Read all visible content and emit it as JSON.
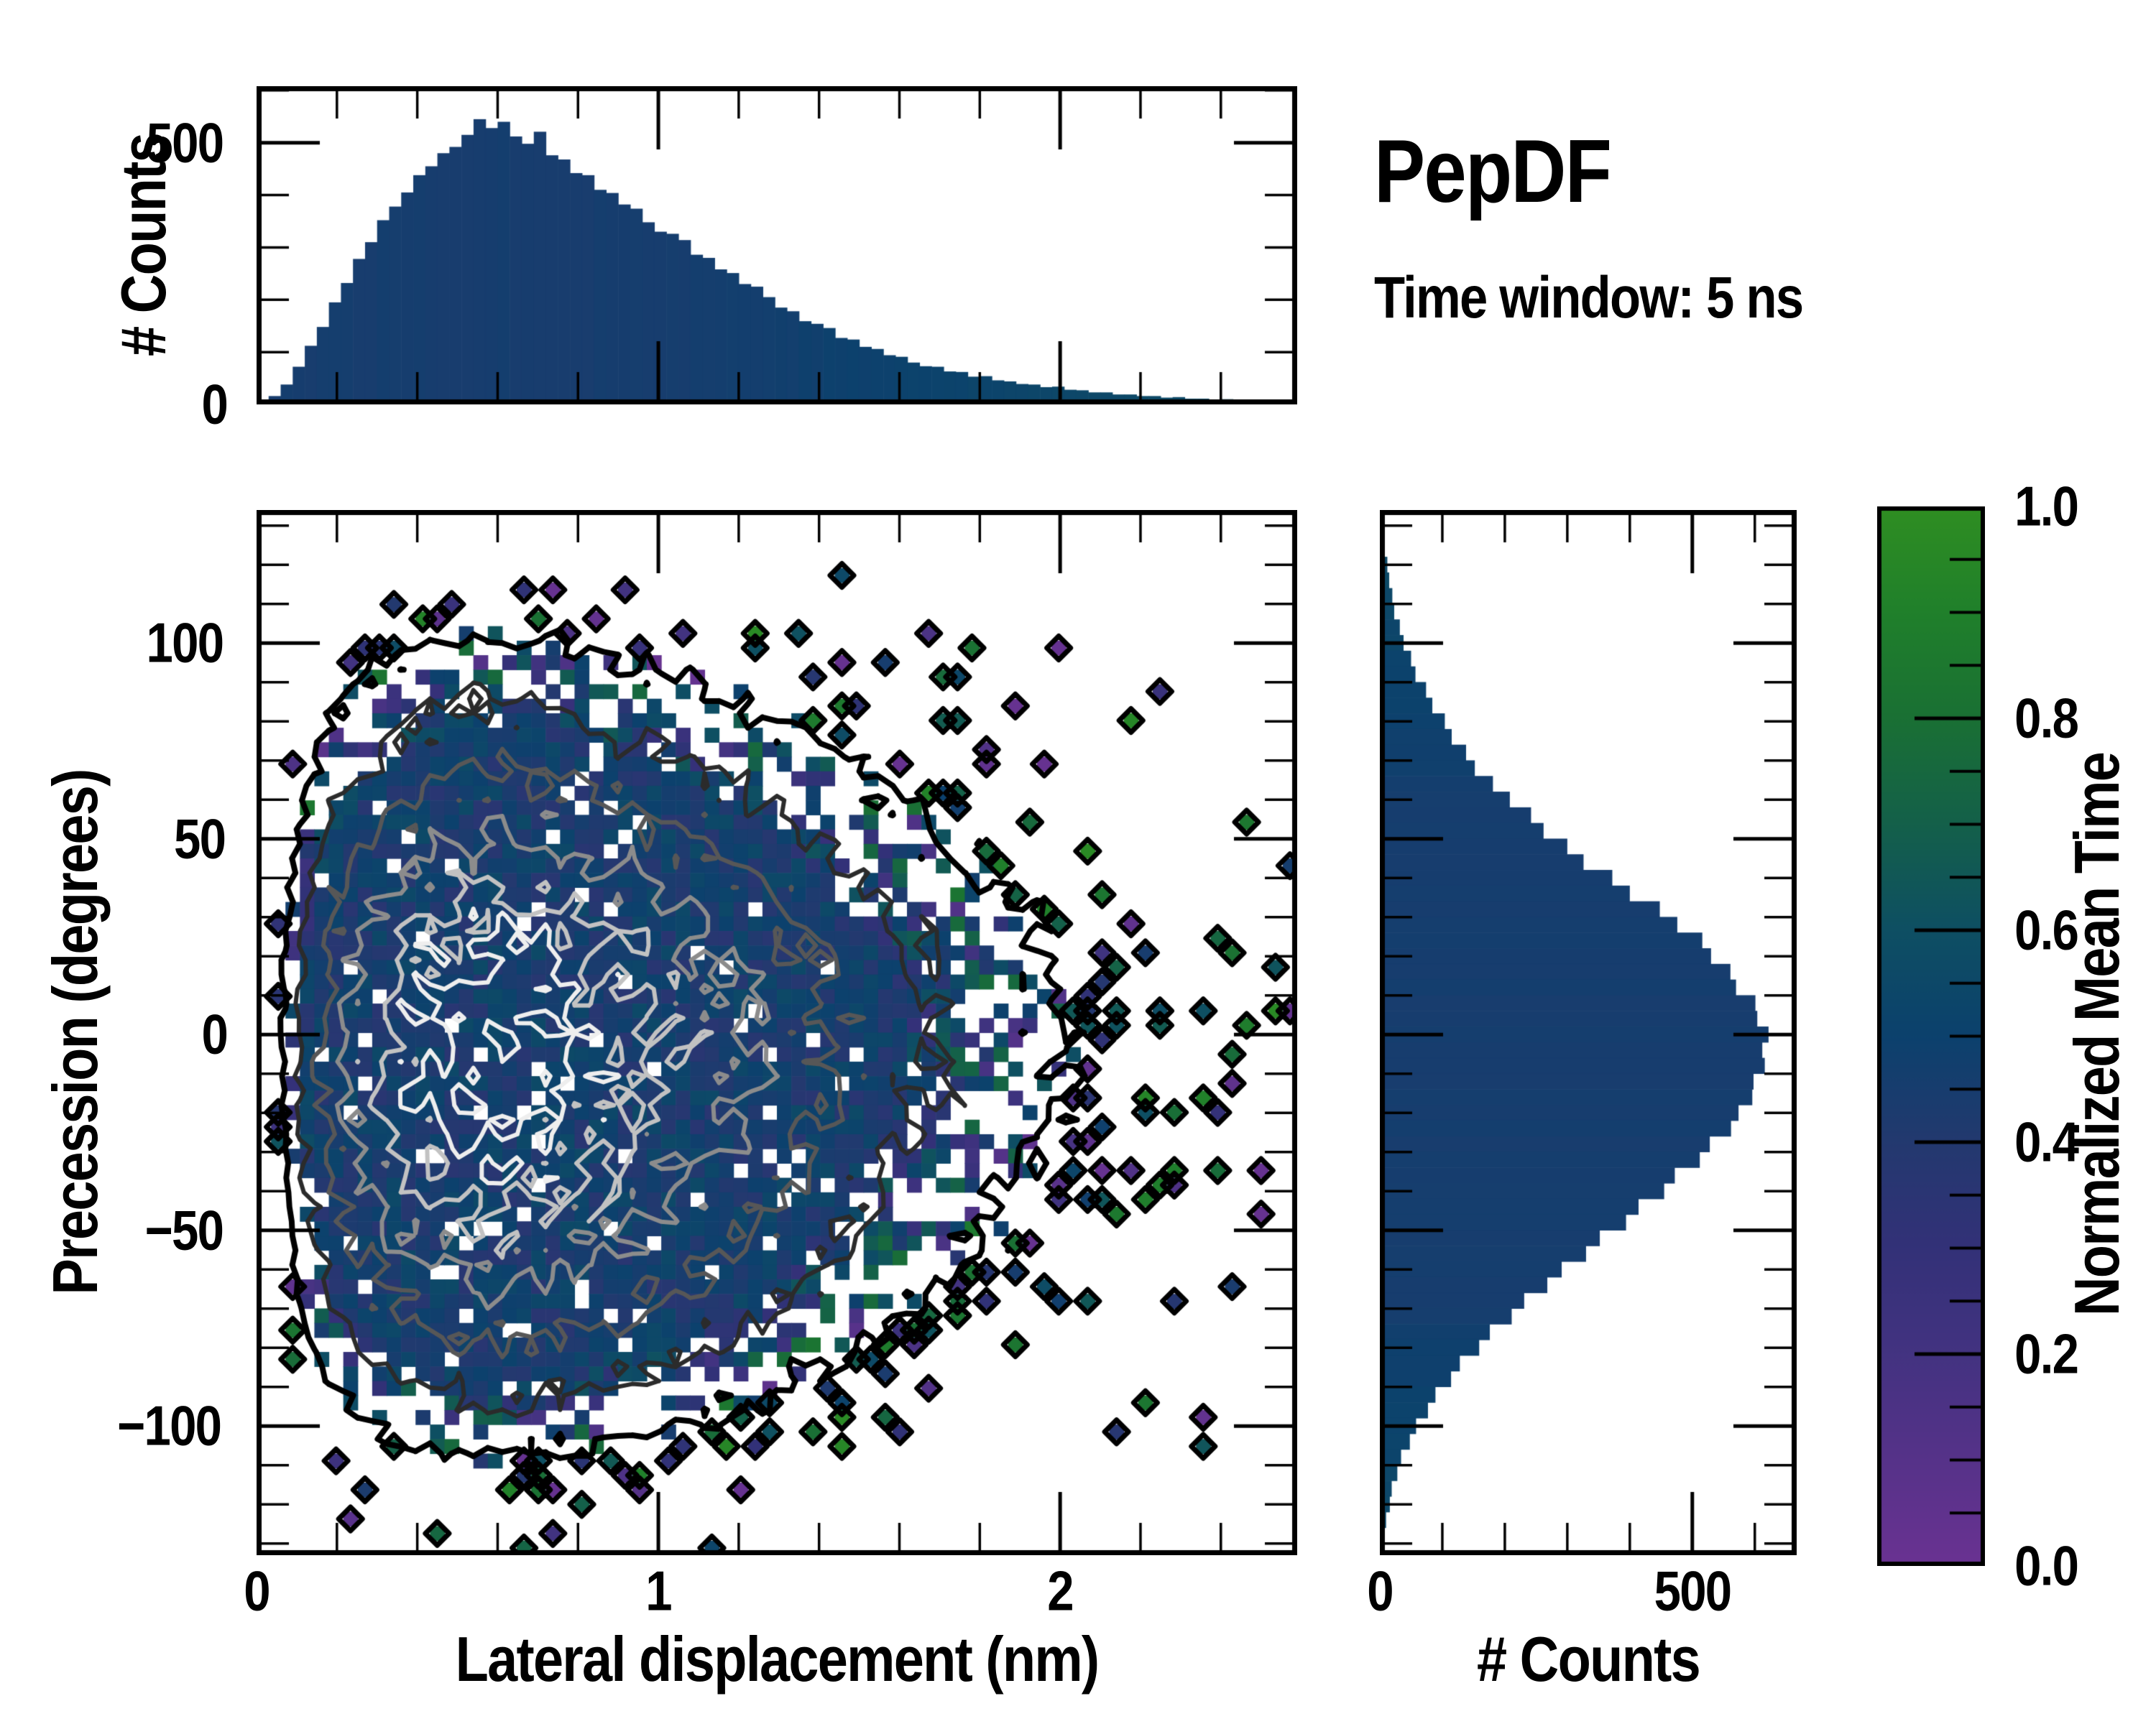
{
  "title": {
    "main": "PepDF",
    "subtitle": "Time window: 5 ns"
  },
  "colors": {
    "background": "#ffffff",
    "axis": "#000000",
    "histogram_bar": "#15406e"
  },
  "chart_data": {
    "type": "hist2d_with_marginals",
    "main": {
      "type": "heatmap",
      "xlabel": "Lateral displacement (nm)",
      "ylabel": "Precession (degrees)",
      "xlim": [
        0,
        2.59
      ],
      "ylim": [
        -133,
        134
      ],
      "xticks": [
        0,
        1,
        2
      ],
      "xtick_labels": [
        "0",
        "1",
        "2"
      ],
      "x_minor_step": 0.2,
      "yticks": [
        100,
        50,
        0,
        -50,
        -100
      ],
      "ytick_labels": [
        "100",
        "50",
        "0",
        "−50",
        "−100"
      ],
      "y_minor_step": 10,
      "color_meaning": "normalized mean time per cell",
      "grid": false,
      "heatmap_model": {
        "nx": 72,
        "ny": 72,
        "seed": 20240601,
        "fill_gain": 6.8,
        "fill_exponent": 1.08,
        "dropout": 0.05,
        "value_center": 0.46,
        "value_spread_min": 0.1,
        "value_spread_max": 0.6,
        "contour_levels": [
          0.055,
          0.13,
          0.25,
          0.42,
          0.62,
          0.82
        ],
        "contour_colors": [
          "#000000",
          "#2b2b2b",
          "#575757",
          "#8c8c8c",
          "#c2c2c2",
          "#eeeeee"
        ],
        "outlier_diamond_level": 0.05,
        "corner_noise": 0.56,
        "center_x_nm": 0.62,
        "center_y_deg": -5
      }
    },
    "top_marginal": {
      "type": "bar",
      "ylabel": "# Counts",
      "yticks": [
        0,
        500
      ],
      "ytick_labels": [
        "0",
        "500"
      ],
      "y_minor_step": 100,
      "ylim": [
        0,
        608
      ],
      "x_start": 0.015,
      "bin_width": 0.03,
      "values": [
        4,
        16,
        38,
        72,
        112,
        148,
        195,
        232,
        278,
        310,
        352,
        378,
        405,
        438,
        455,
        480,
        492,
        515,
        545,
        528,
        540,
        512,
        498,
        521,
        476,
        468,
        442,
        438,
        410,
        404,
        382,
        374,
        348,
        330,
        326,
        314,
        286,
        280,
        258,
        251,
        230,
        225,
        205,
        185,
        178,
        159,
        154,
        146,
        127,
        124,
        110,
        106,
        94,
        91,
        80,
        73,
        72,
        63,
        62,
        53,
        54,
        46,
        44,
        39,
        38,
        33,
        34,
        28,
        27,
        23,
        23,
        19,
        19,
        16,
        16,
        13,
        14,
        11,
        11,
        9,
        10,
        8,
        7,
        7,
        6,
        5,
        5,
        4,
        4,
        3
      ]
    },
    "right_marginal": {
      "type": "bar",
      "xlabel": "# Counts",
      "xticks": [
        0,
        500
      ],
      "xtick_labels": [
        "0",
        "500"
      ],
      "x_minor_step": 100,
      "xlim": [
        0,
        667
      ],
      "y_bins_start": 120,
      "y_bin_step": -4,
      "values": [
        12,
        15,
        20,
        23,
        32,
        38,
        50,
        57,
        74,
        84,
        104,
        115,
        138,
        152,
        181,
        208,
        242,
        262,
        300,
        326,
        372,
        400,
        448,
        476,
        516,
        530,
        561,
        570,
        601,
        604,
        622,
        612,
        616,
        598,
        596,
        574,
        562,
        528,
        512,
        472,
        455,
        414,
        394,
        352,
        330,
        291,
        268,
        231,
        211,
        176,
        159,
        128,
        114,
        89,
        77,
        58,
        48,
        34,
        28,
        19,
        16,
        10,
        8
      ]
    },
    "colorbar": {
      "label": "Normalized Mean Time",
      "ticks": [
        0.0,
        0.2,
        0.4,
        0.6,
        0.8,
        1.0
      ],
      "tick_labels": [
        "0.0",
        "0.2",
        "0.4",
        "0.6",
        "0.8",
        "1.0"
      ],
      "minor_step": 0.05,
      "gradient_stops": [
        [
          0.0,
          "#6a3292"
        ],
        [
          0.1,
          "#563289"
        ],
        [
          0.2,
          "#433381"
        ],
        [
          0.3,
          "#333178"
        ],
        [
          0.4,
          "#23396f"
        ],
        [
          0.5,
          "#0c416d"
        ],
        [
          0.6,
          "#0e4f63"
        ],
        [
          0.7,
          "#14604a"
        ],
        [
          0.8,
          "#1a7034"
        ],
        [
          0.9,
          "#20802b"
        ],
        [
          1.0,
          "#2f8e22"
        ]
      ]
    }
  }
}
